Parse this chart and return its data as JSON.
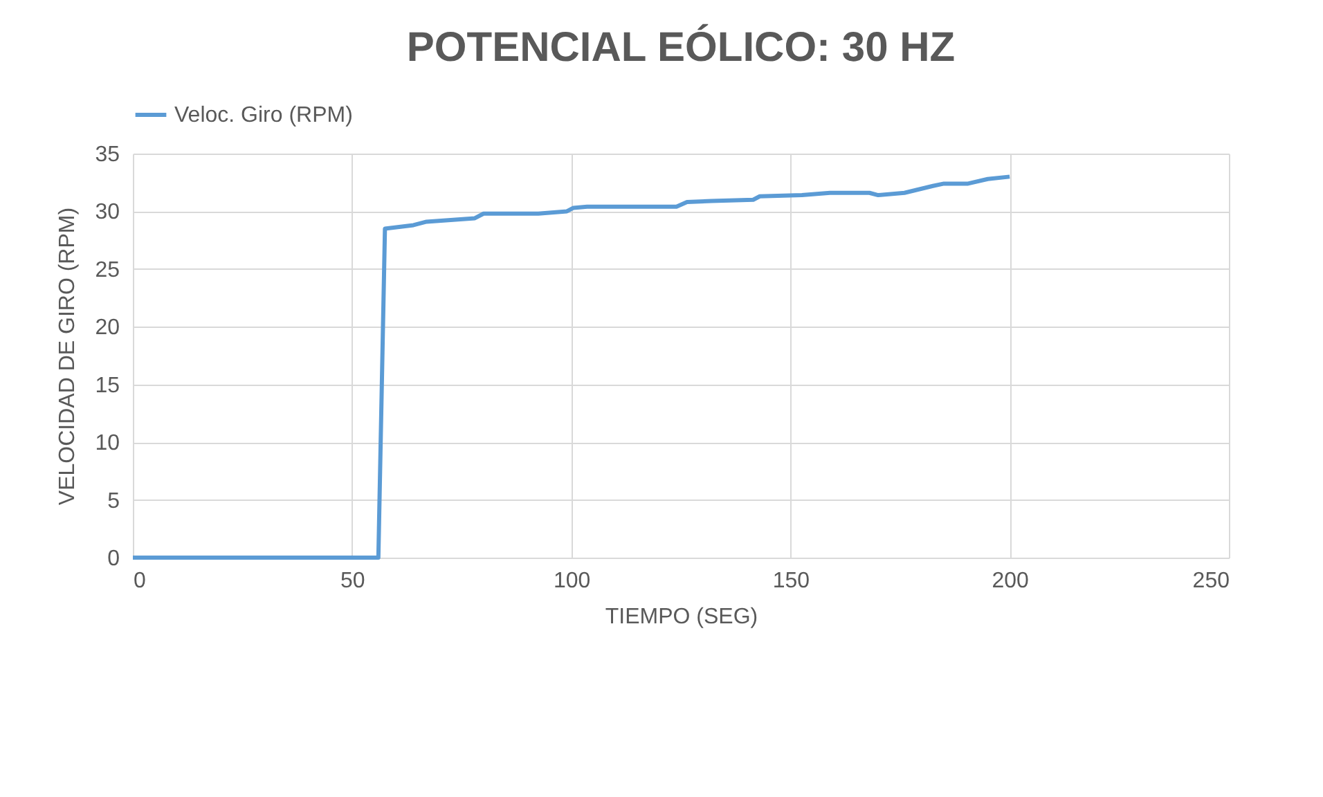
{
  "chart_data": {
    "type": "line",
    "title": "POTENCIAL EÓLICO: 30 HZ",
    "xlabel": "TIEMPO (SEG)",
    "ylabel": "VELOCIDAD DE GIRO (RPM)",
    "series": [
      {
        "name": "Veloc. Giro (RPM)",
        "color": "#5b9bd5",
        "x": [
          0,
          56,
          57.5,
          64,
          67,
          78,
          80,
          92.5,
          99,
          100.5,
          103.6,
          124,
          126.4,
          132,
          141.5,
          143,
          152.6,
          159,
          168,
          170,
          176,
          182.5,
          185,
          190.5,
          195,
          200
        ],
        "values": [
          0,
          0,
          28.5,
          28.8,
          29.1,
          29.4,
          29.8,
          29.8,
          30.0,
          30.3,
          30.4,
          30.4,
          30.8,
          30.9,
          31.0,
          31.3,
          31.4,
          31.6,
          31.6,
          31.4,
          31.6,
          32.2,
          32.4,
          32.4,
          32.8,
          33.0
        ]
      }
    ],
    "xlim": [
      0,
      250
    ],
    "xticks": [
      0,
      50,
      100,
      150,
      200,
      250
    ],
    "ylim": [
      0,
      35
    ],
    "yticks": [
      0,
      5,
      10,
      15,
      20,
      25,
      30,
      35
    ],
    "grid": true,
    "legend": "top",
    "marker": "none",
    "line_style": "solid"
  }
}
